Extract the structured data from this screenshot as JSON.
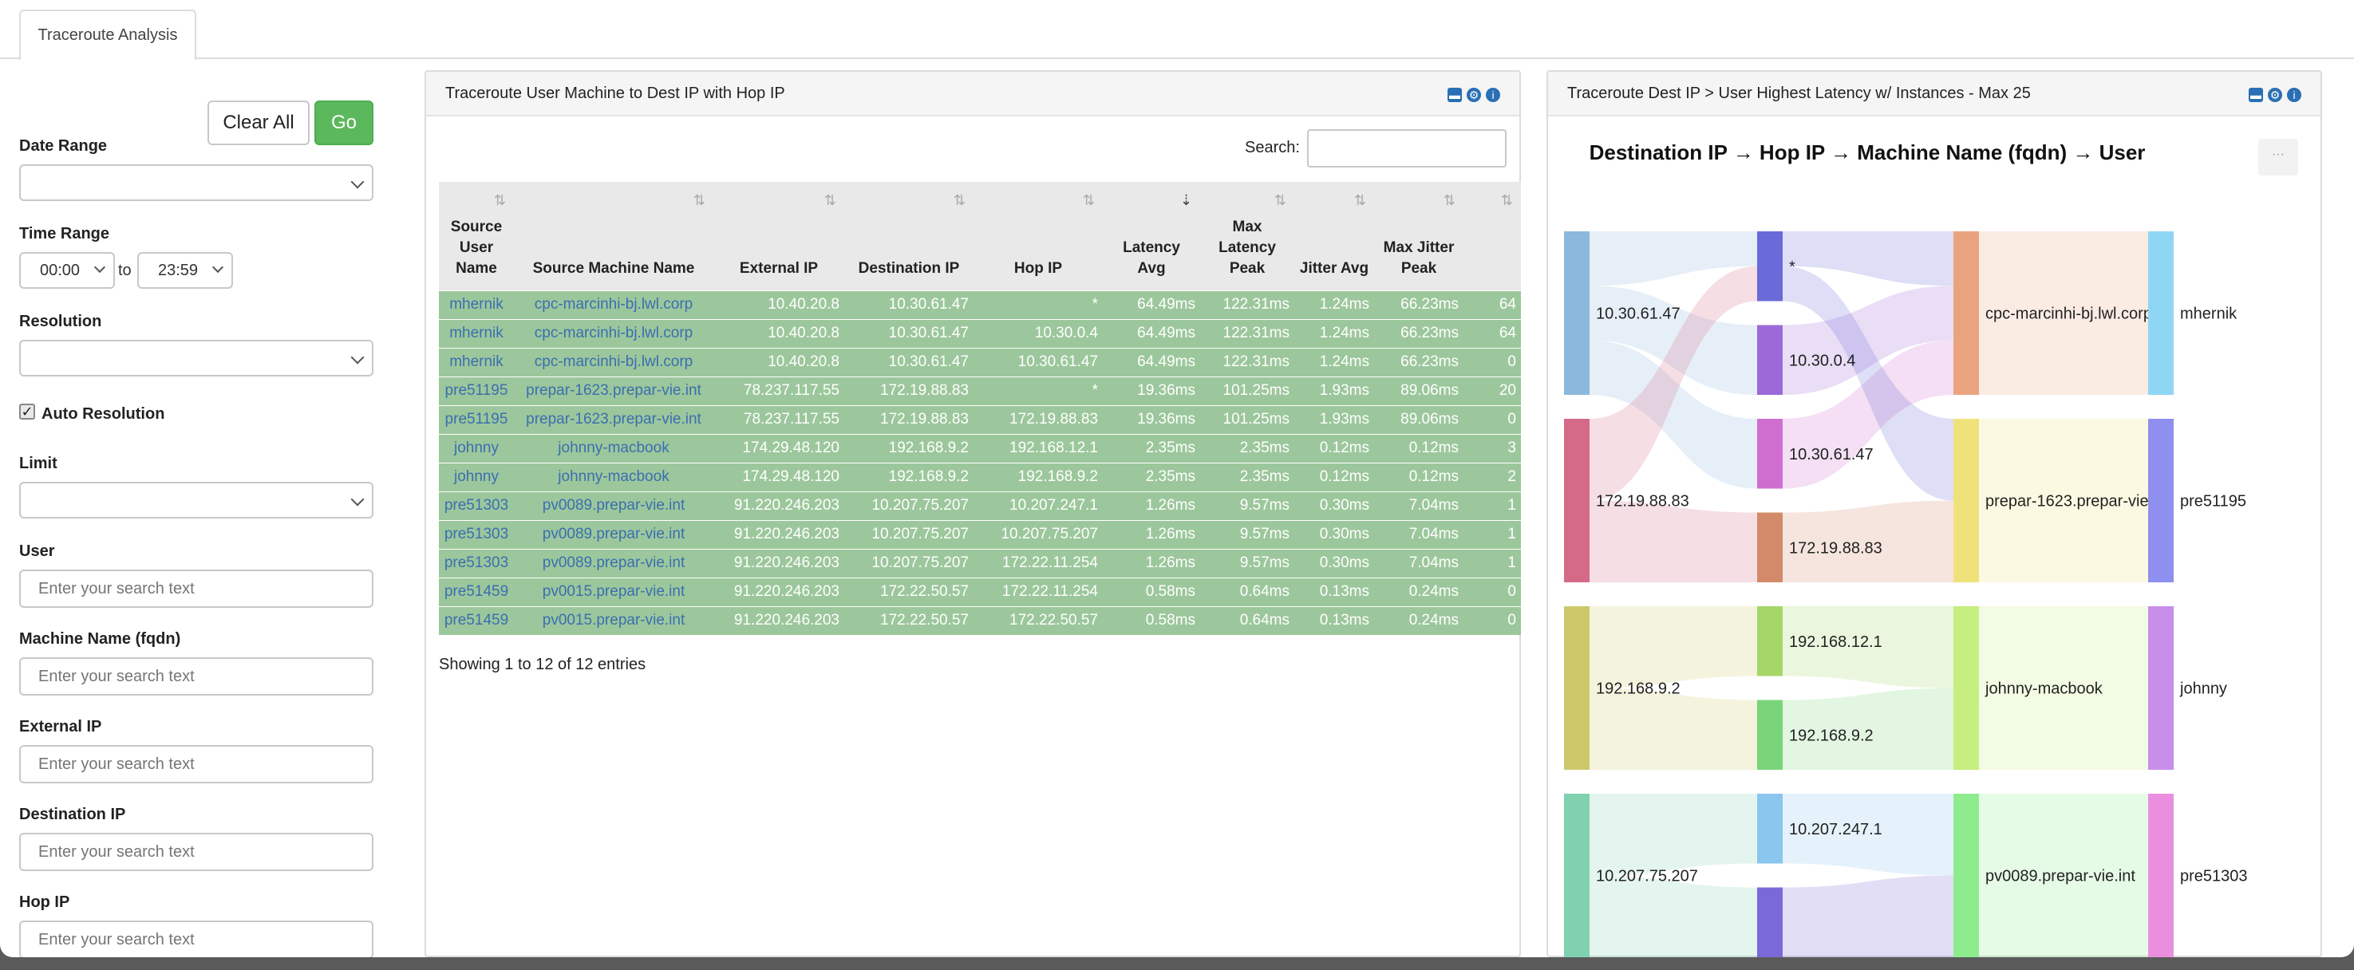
{
  "tab": {
    "label": "Traceroute Analysis"
  },
  "filters": {
    "clear_label": "Clear All",
    "go_label": "Go",
    "date_range_label": "Date Range",
    "time_range_label": "Time Range",
    "time_from": "00:00",
    "time_to": "23:59",
    "time_sep": "to",
    "resolution_label": "Resolution",
    "auto_resolution_label": "Auto Resolution",
    "auto_resolution_checked": true,
    "limit_label": "Limit",
    "user_label": "User",
    "machine_label": "Machine Name (fqdn)",
    "external_ip_label": "External IP",
    "dest_ip_label": "Destination IP",
    "hop_ip_label": "Hop IP",
    "placeholder": "Enter your search text"
  },
  "table_panel": {
    "title": "Traceroute User Machine to Dest IP with Hop IP",
    "search_label": "Search:",
    "columns": [
      "Source User Name",
      "Source Machine Name",
      "External IP",
      "Destination IP",
      "Hop IP",
      "Latency Avg",
      "Max Latency Peak",
      "Jitter Avg",
      "Max Jitter Peak",
      ""
    ],
    "rows": [
      [
        "mhernik",
        "cpc-marcinhi-bj.lwl.corp",
        "10.40.20.8",
        "10.30.61.47",
        "*",
        "64.49ms",
        "122.31ms",
        "1.24ms",
        "66.23ms",
        "64"
      ],
      [
        "mhernik",
        "cpc-marcinhi-bj.lwl.corp",
        "10.40.20.8",
        "10.30.61.47",
        "10.30.0.4",
        "64.49ms",
        "122.31ms",
        "1.24ms",
        "66.23ms",
        "64"
      ],
      [
        "mhernik",
        "cpc-marcinhi-bj.lwl.corp",
        "10.40.20.8",
        "10.30.61.47",
        "10.30.61.47",
        "64.49ms",
        "122.31ms",
        "1.24ms",
        "66.23ms",
        "0"
      ],
      [
        "pre51195",
        "prepar-1623.prepar-vie.int",
        "78.237.117.55",
        "172.19.88.83",
        "*",
        "19.36ms",
        "101.25ms",
        "1.93ms",
        "89.06ms",
        "20"
      ],
      [
        "pre51195",
        "prepar-1623.prepar-vie.int",
        "78.237.117.55",
        "172.19.88.83",
        "172.19.88.83",
        "19.36ms",
        "101.25ms",
        "1.93ms",
        "89.06ms",
        "0"
      ],
      [
        "johnny",
        "johnny-macbook",
        "174.29.48.120",
        "192.168.9.2",
        "192.168.12.1",
        "2.35ms",
        "2.35ms",
        "0.12ms",
        "0.12ms",
        "3"
      ],
      [
        "johnny",
        "johnny-macbook",
        "174.29.48.120",
        "192.168.9.2",
        "192.168.9.2",
        "2.35ms",
        "2.35ms",
        "0.12ms",
        "0.12ms",
        "2"
      ],
      [
        "pre51303",
        "pv0089.prepar-vie.int",
        "91.220.246.203",
        "10.207.75.207",
        "10.207.247.1",
        "1.26ms",
        "9.57ms",
        "0.30ms",
        "7.04ms",
        "1"
      ],
      [
        "pre51303",
        "pv0089.prepar-vie.int",
        "91.220.246.203",
        "10.207.75.207",
        "10.207.75.207",
        "1.26ms",
        "9.57ms",
        "0.30ms",
        "7.04ms",
        "1"
      ],
      [
        "pre51303",
        "pv0089.prepar-vie.int",
        "91.220.246.203",
        "10.207.75.207",
        "172.22.11.254",
        "1.26ms",
        "9.57ms",
        "0.30ms",
        "7.04ms",
        "1"
      ],
      [
        "pre51459",
        "pv0015.prepar-vie.int",
        "91.220.246.203",
        "172.22.50.57",
        "172.22.11.254",
        "0.58ms",
        "0.64ms",
        "0.13ms",
        "0.24ms",
        "0"
      ],
      [
        "pre51459",
        "pv0015.prepar-vie.int",
        "91.220.246.203",
        "172.22.50.57",
        "172.22.50.57",
        "0.58ms",
        "0.64ms",
        "0.13ms",
        "0.24ms",
        "0"
      ]
    ],
    "showing": "Showing 1 to 12 of 12 entries"
  },
  "chart_panel": {
    "title": "Traceroute Dest IP > User Highest Latency w/ Instances - Max 25",
    "more_label": "···"
  },
  "chart_data": {
    "type": "sankey",
    "title": "Destination IP → Hop IP → Machine Name (fqdn) → User",
    "columns": [
      [
        {
          "label": "10.30.61.47",
          "color": "#8cb8db"
        },
        {
          "label": "172.19.88.83",
          "color": "#d46a87"
        },
        {
          "label": "192.168.9.2",
          "color": "#cdc96b"
        },
        {
          "label": "10.207.75.207",
          "color": "#7fd1b0"
        }
      ],
      [
        {
          "label": "*",
          "color": "#6a6ad8"
        },
        {
          "label": "10.30.0.4",
          "color": "#9b6ad8"
        },
        {
          "label": "10.30.61.47",
          "color": "#cf6ecf"
        },
        {
          "label": "172.19.88.83",
          "color": "#d28a6a"
        },
        {
          "label": "192.168.12.1",
          "color": "#a6d66a"
        },
        {
          "label": "192.168.9.2",
          "color": "#7ad47a"
        },
        {
          "label": "10.207.247.1",
          "color": "#8ac6ee"
        },
        {
          "label": "",
          "color": "#7a6ad8"
        }
      ],
      [
        {
          "label": "cpc-marcinhi-bj.lwl.corp",
          "color": "#e9a47f"
        },
        {
          "label": "prepar-1623.prepar-vie.",
          "color": "#f0e27a"
        },
        {
          "label": "johnny-macbook",
          "color": "#c6ee80"
        },
        {
          "label": "pv0089.prepar-vie.int",
          "color": "#8eec8e"
        }
      ],
      [
        {
          "label": "mhernik",
          "color": "#8fd6f5"
        },
        {
          "label": "pre51195",
          "color": "#8f8ff0"
        },
        {
          "label": "johnny",
          "color": "#c78fea"
        },
        {
          "label": "pre51303",
          "color": "#ea8fe0"
        }
      ]
    ],
    "links": [
      [
        0,
        0,
        1,
        0
      ],
      [
        0,
        0,
        1,
        1
      ],
      [
        0,
        0,
        1,
        2
      ],
      [
        0,
        1,
        1,
        0
      ],
      [
        0,
        1,
        1,
        3
      ],
      [
        0,
        2,
        1,
        4
      ],
      [
        0,
        2,
        1,
        5
      ],
      [
        0,
        3,
        1,
        6
      ],
      [
        0,
        3,
        1,
        7
      ],
      [
        1,
        0,
        2,
        0
      ],
      [
        1,
        1,
        2,
        0
      ],
      [
        1,
        2,
        2,
        0
      ],
      [
        1,
        0,
        2,
        1
      ],
      [
        1,
        3,
        2,
        1
      ],
      [
        1,
        4,
        2,
        2
      ],
      [
        1,
        5,
        2,
        2
      ],
      [
        1,
        6,
        2,
        3
      ],
      [
        1,
        7,
        2,
        3
      ],
      [
        2,
        0,
        3,
        0
      ],
      [
        2,
        1,
        3,
        1
      ],
      [
        2,
        2,
        3,
        2
      ],
      [
        2,
        3,
        3,
        3
      ]
    ]
  }
}
